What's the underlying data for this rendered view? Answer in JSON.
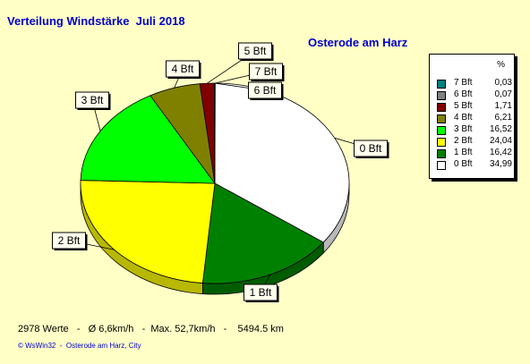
{
  "title": "Verteilung Windstärke  Juli 2018",
  "location": "Osterode am Harz",
  "footer": {
    "stats": "2978 Werte   -   Ø 6,6km/h   -  Max. 52,7km/h   -    5494.5 km",
    "credit": "© WsWin32  -  Osterode am Harz, City"
  },
  "colors": {
    "background": "#ffffc6",
    "title": "#0000cc"
  },
  "chart_data": {
    "type": "pie",
    "unit": "%",
    "legend_position": "right",
    "slices": [
      {
        "label": "0 Bft",
        "value": 34.99,
        "display": "34,99",
        "color": "#ffffff"
      },
      {
        "label": "1 Bft",
        "value": 16.42,
        "display": "16,42",
        "color": "#008000"
      },
      {
        "label": "2 Bft",
        "value": 24.04,
        "display": "24,04",
        "color": "#ffff00"
      },
      {
        "label": "3 Bft",
        "value": 16.52,
        "display": "16,52",
        "color": "#00ff00"
      },
      {
        "label": "4 Bft",
        "value": 6.21,
        "display": "6,21",
        "color": "#808000"
      },
      {
        "label": "5 Bft",
        "value": 1.71,
        "display": "1,71",
        "color": "#800000"
      },
      {
        "label": "6 Bft",
        "value": 0.07,
        "display": "0,07",
        "color": "#808080"
      },
      {
        "label": "7 Bft",
        "value": 0.03,
        "display": "0,03",
        "color": "#008080"
      }
    ]
  }
}
